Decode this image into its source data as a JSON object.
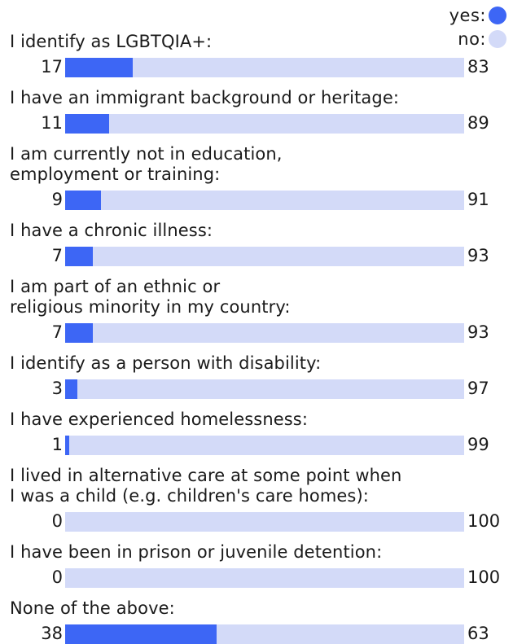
{
  "legend": {
    "yes_label": "yes:",
    "no_label": "no:"
  },
  "colors": {
    "yes": "#3d66f5",
    "no": "#d3daf8"
  },
  "chart_data": {
    "type": "bar",
    "orientation": "horizontal",
    "stacked": true,
    "series": [
      {
        "name": "yes",
        "color": "#3d66f5"
      },
      {
        "name": "no",
        "color": "#d3daf8"
      }
    ],
    "categories": [
      {
        "label": "I identify as LGBTQIA+:",
        "yes": 17,
        "no": 83
      },
      {
        "label": "I have an immigrant background or heritage:",
        "yes": 11,
        "no": 89
      },
      {
        "label": "I am currently not in education,\nemployment or training:",
        "yes": 9,
        "no": 91
      },
      {
        "label": "I have a chronic illness:",
        "yes": 7,
        "no": 93
      },
      {
        "label": "I am part of an ethnic or\nreligious minority in my country:",
        "yes": 7,
        "no": 93
      },
      {
        "label": "I identify as a person with disability:",
        "yes": 3,
        "no": 97
      },
      {
        "label": "I have experienced homelessness:",
        "yes": 1,
        "no": 99
      },
      {
        "label": "I lived in alternative care at some point when\nI was a child (e.g. children's care homes):",
        "yes": 0,
        "no": 100
      },
      {
        "label": "I have been in prison or juvenile detention:",
        "yes": 0,
        "no": 100
      },
      {
        "label": "None of the above:",
        "yes": 38,
        "no": 63
      }
    ]
  }
}
